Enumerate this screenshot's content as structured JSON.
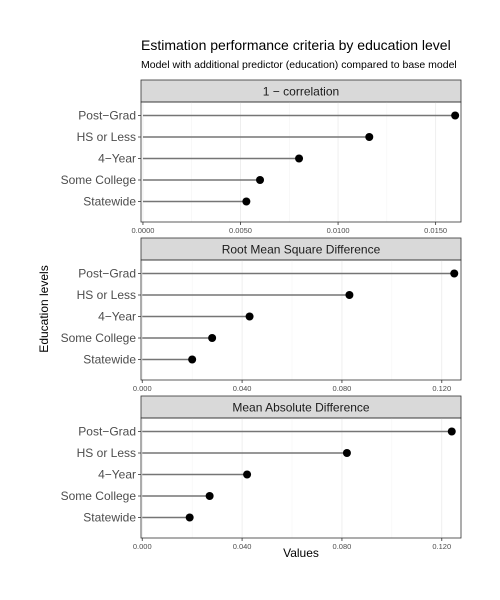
{
  "chart_data": {
    "type": "lollipop",
    "title": "Estimation performance criteria by education level",
    "subtitle": "Model with additional predictor (education) compared to base model",
    "xlabel": "Values",
    "ylabel": "Education levels",
    "categories": [
      "Post−Grad",
      "HS or Less",
      "4−Year",
      "Some College",
      "Statewide"
    ],
    "panels": [
      {
        "title": "1 − correlation",
        "xlim": [
          -0.0001,
          0.0163
        ],
        "ticks": [
          0,
          0.005,
          0.01,
          0.015
        ],
        "tick_labels": [
          "0.0000",
          "0.0050",
          "0.0100",
          "0.0150"
        ],
        "values": [
          0.016,
          0.0116,
          0.008,
          0.006,
          0.0053
        ]
      },
      {
        "title": "Root Mean Square Difference",
        "xlim": [
          -0.0005,
          0.1277
        ],
        "ticks": [
          0,
          0.04,
          0.08,
          0.12
        ],
        "tick_labels": [
          "0.000",
          "0.040",
          "0.080",
          "0.120"
        ],
        "values": [
          0.125,
          0.083,
          0.043,
          0.028,
          0.02
        ]
      },
      {
        "title": "Mean Absolute Difference",
        "xlim": [
          -0.0005,
          0.1277
        ],
        "ticks": [
          0,
          0.04,
          0.08,
          0.12
        ],
        "tick_labels": [
          "0.000",
          "0.040",
          "0.080",
          "0.120"
        ],
        "values": [
          0.124,
          0.082,
          0.042,
          0.027,
          0.019
        ]
      }
    ],
    "grid": true,
    "legend": "none"
  }
}
